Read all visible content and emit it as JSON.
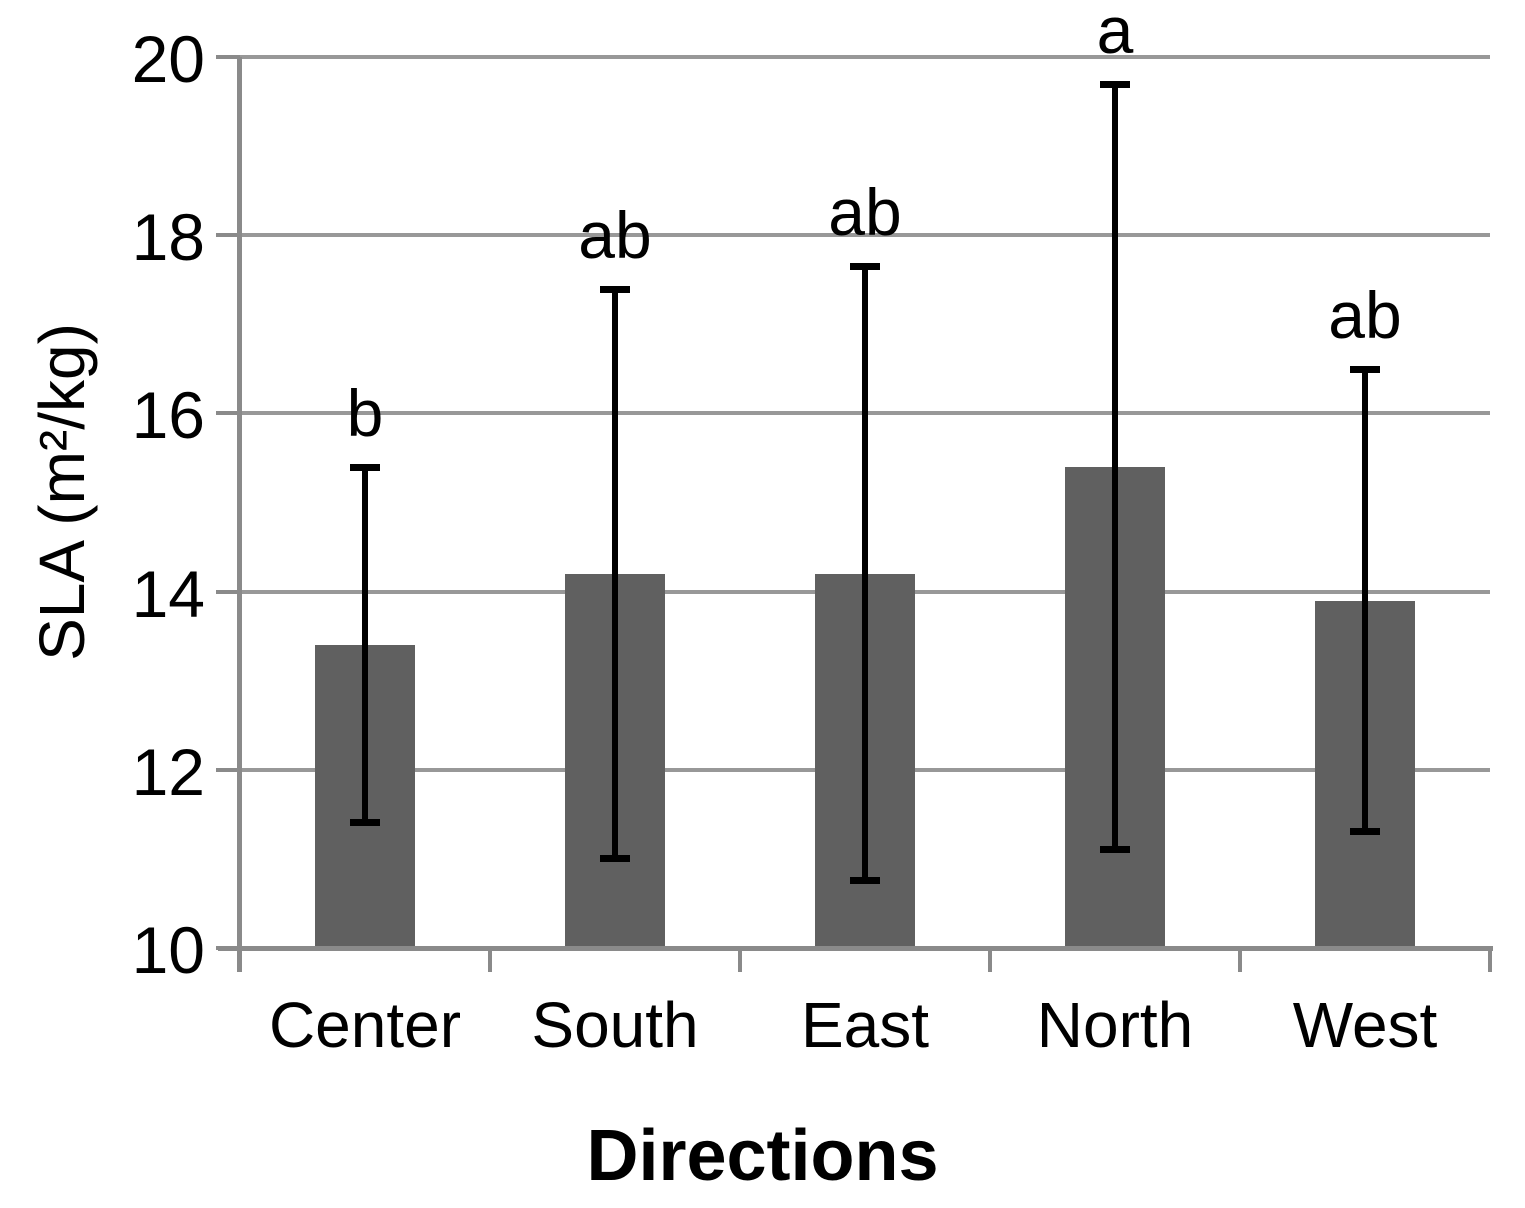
{
  "chart_data": {
    "type": "bar",
    "title": "",
    "xlabel": "Directions",
    "ylabel": "SLA (m²/kg)",
    "ylim": [
      10,
      20
    ],
    "yticks": [
      10,
      12,
      14,
      16,
      18,
      20
    ],
    "grid": "horizontal",
    "legend": "none",
    "bar_color": "#606060",
    "gridline_color": "#989898",
    "axis_color": "#8a8a8a",
    "error_bar_color": "#000000",
    "categories": [
      "Center",
      "South",
      "East",
      "North",
      "West"
    ],
    "values": [
      13.4,
      14.2,
      14.2,
      15.4,
      13.9
    ],
    "errors": [
      2.0,
      3.2,
      3.45,
      4.3,
      2.6
    ],
    "significance_letters": [
      "b",
      "ab",
      "ab",
      "a",
      "ab"
    ]
  }
}
